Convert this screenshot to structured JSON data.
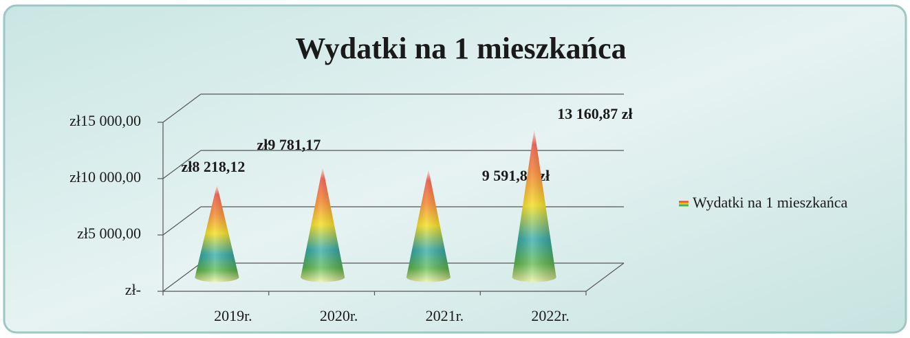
{
  "chart_data": {
    "type": "cone",
    "title": "Wydatki na 1 mieszkańca",
    "categories": [
      "2019r.",
      "2020r.",
      "2021r.",
      "2022r."
    ],
    "series": [
      {
        "name": "Wydatki na 1 mieszkańca",
        "values": [
          8218.12,
          9781.17,
          9591.87,
          13160.87
        ],
        "value_labels": [
          "zł8 218,12",
          "zł9 781,17",
          "9 591,87 zł",
          "13 160,87 zł"
        ]
      }
    ],
    "ylim": [
      0,
      15000
    ],
    "yticks": [
      {
        "value": 0,
        "label": "zł-"
      },
      {
        "value": 5000,
        "label": "zł5 000,00"
      },
      {
        "value": 10000,
        "label": "zł10 000,00"
      },
      {
        "value": 15000,
        "label": "zł15 000,00"
      }
    ],
    "grid": true,
    "legend": "right"
  }
}
